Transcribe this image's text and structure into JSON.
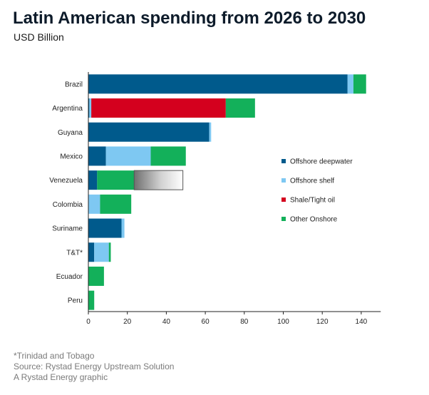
{
  "title": "Latin American spending from 2026 to 2030",
  "subtitle": "USD Billion",
  "footer": {
    "note": "*Trinidad and Tobago",
    "source": "Source: Rystad Energy Upstream Solution",
    "credit": "A Rystad Energy graphic"
  },
  "chart_data": {
    "type": "bar",
    "orientation": "horizontal",
    "stacked": true,
    "categories": [
      "Brazil",
      "Argentina",
      "Guyana",
      "Mexico",
      "Venezuela",
      "Colombia",
      "Suriname",
      "T&T*",
      "Ecuador",
      "Peru"
    ],
    "series": [
      {
        "name": "Offshore deepwater",
        "color": "#005a8c",
        "values": [
          133,
          0.5,
          62,
          9,
          4.5,
          0,
          17,
          3,
          0,
          0
        ]
      },
      {
        "name": "Offshore shelf",
        "color": "#7ec8f2",
        "values": [
          3,
          1,
          1,
          23,
          0,
          6,
          1.5,
          7.5,
          0,
          0
        ]
      },
      {
        "name": "Shale/Tight oil",
        "color": "#d4001e",
        "values": [
          0,
          69,
          0,
          0,
          0,
          0,
          0,
          0,
          0,
          0
        ]
      },
      {
        "name": "Other Onshore",
        "color": "#13b05a",
        "values": [
          6.5,
          15,
          0,
          18,
          19,
          16,
          0,
          1,
          8,
          3
        ]
      }
    ],
    "extra_segments": [
      {
        "category": "Venezuela",
        "start": 23.5,
        "end": 48.5,
        "style": "gradient-outlined"
      }
    ],
    "xlim": [
      0,
      150
    ],
    "xticks": [
      0,
      20,
      40,
      60,
      80,
      100,
      120,
      140
    ],
    "xlabel": "",
    "ylabel": "",
    "grid": false,
    "legend_position": "right"
  }
}
